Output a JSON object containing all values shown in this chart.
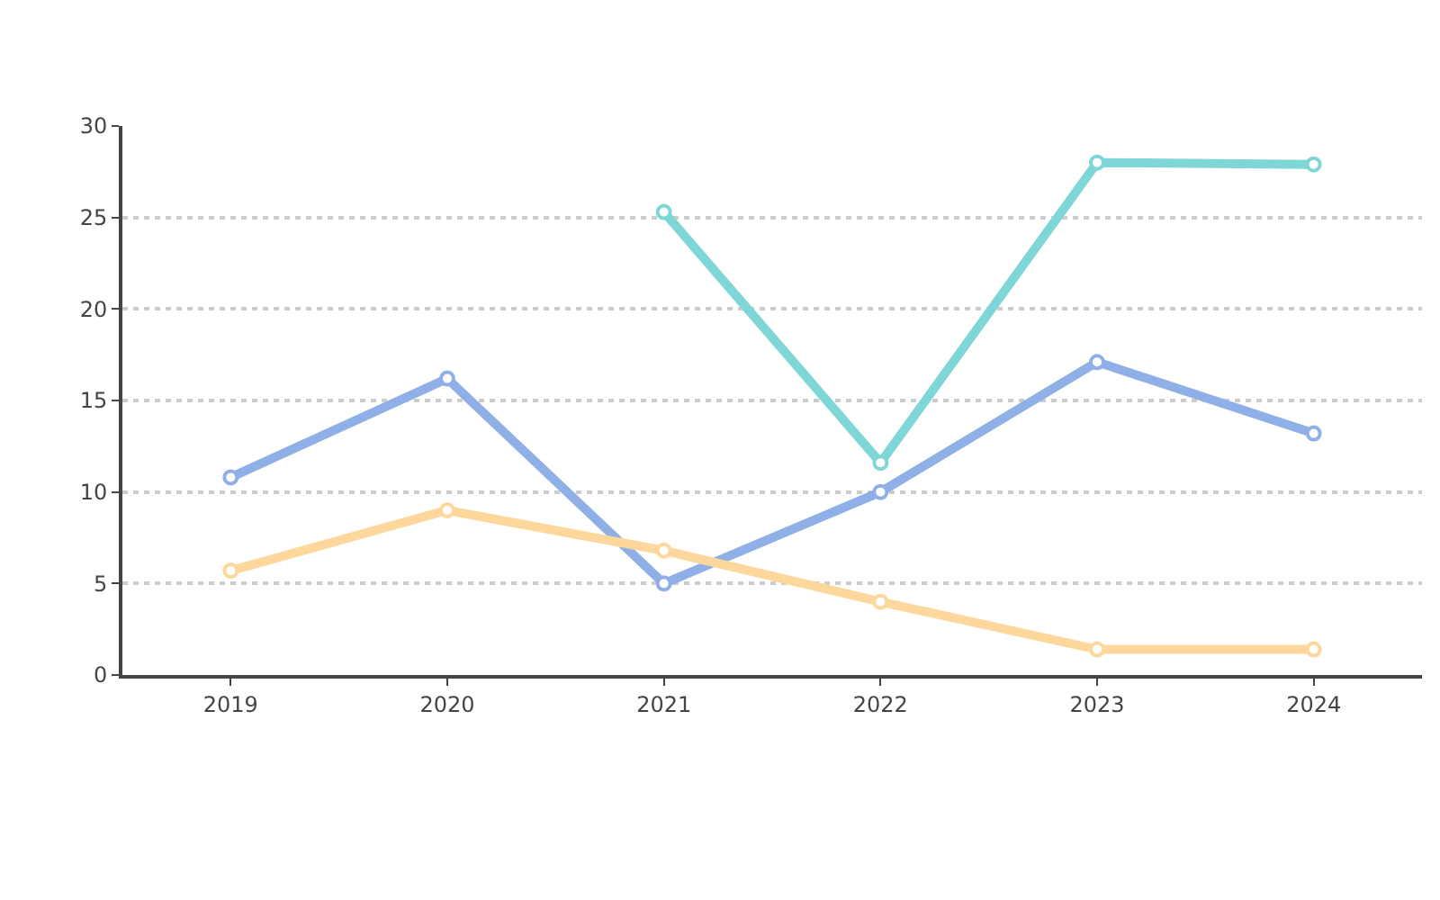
{
  "chart_data": {
    "type": "line",
    "categories": [
      "2019",
      "2020",
      "2021",
      "2022",
      "2023",
      "2024"
    ],
    "series": [
      {
        "color": "#8fb0e6",
        "values": [
          10.8,
          16.2,
          5.0,
          10.0,
          17.1,
          13.2
        ]
      },
      {
        "color": "#fdd79b",
        "values": [
          5.7,
          9.0,
          6.8,
          4.0,
          1.4,
          1.4
        ]
      },
      {
        "color": "#7fd6d6",
        "values": [
          null,
          null,
          25.3,
          11.6,
          28.0,
          27.9
        ]
      }
    ],
    "ylim": [
      0,
      30
    ],
    "yticks": [
      0,
      5,
      10,
      15,
      20,
      25,
      30
    ],
    "grid": "y",
    "marker": "circle",
    "line_style": "solid"
  }
}
